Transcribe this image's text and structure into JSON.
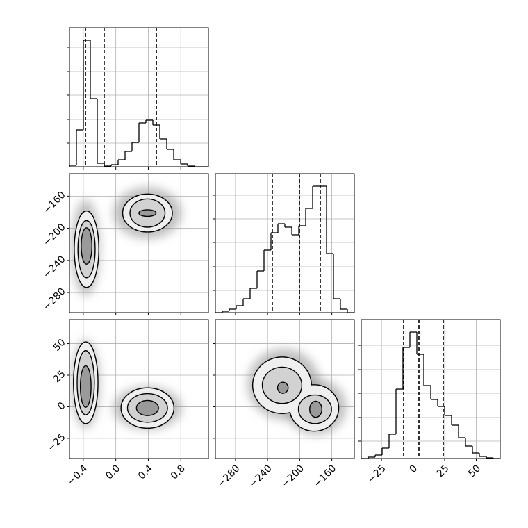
{
  "chart_data": {
    "type": "corner",
    "params": [
      {
        "lim": [
          -0.57,
          1.14
        ],
        "ticks": [
          {
            "value": -0.4,
            "label": "−0.4"
          },
          {
            "value": 0,
            "label": "0.0"
          },
          0.4,
          0.8
        ]
      },
      {
        "lim": [
          -305,
          -132
        ],
        "ticks": [
          {
            "value": -280,
            "label": "−280"
          },
          {
            "value": -240,
            "label": "−240"
          },
          {
            "value": -200,
            "label": "−200"
          },
          {
            "value": -160,
            "label": "−160"
          }
        ]
      },
      {
        "lim": [
          -41,
          69
        ],
        "ticks": [
          {
            "value": -25,
            "label": "−25"
          },
          0,
          25,
          50
        ]
      }
    ],
    "histograms": [
      {
        "bins": [
          -0.57,
          -0.4845,
          -0.399,
          -0.3135,
          -0.228,
          -0.1425,
          -0.057,
          0.0285,
          0.114,
          0.1995,
          0.285,
          0.3705,
          0.456,
          0.5415,
          0.627,
          0.7125,
          0.798,
          0.8835,
          0.969,
          1.0545,
          1.14
        ],
        "counts": [
          2,
          53,
          182,
          98,
          5,
          1,
          3,
          10,
          22,
          35,
          63,
          67,
          60,
          40,
          25,
          10,
          4,
          1,
          0,
          0
        ],
        "ylim": [
          0,
          200
        ],
        "yticks": [
          34,
          68,
          103,
          137,
          172
        ],
        "quantiles": [
          -0.373,
          -0.143,
          0.499
        ]
      },
      {
        "bins": [
          -305,
          -296.35,
          -287.7,
          -279.05,
          -270.4,
          -261.75,
          -253.1,
          -244.45,
          -235.8,
          -227.15,
          -218.5,
          -209.85,
          -201.2,
          -192.55,
          -183.9,
          -175.25,
          -166.6,
          -157.95,
          -149.3,
          -140.65,
          -132
        ],
        "counts": [
          0,
          2,
          5,
          10,
          20,
          35,
          60,
          90,
          115,
          128,
          123,
          112,
          125,
          150,
          182,
          182,
          85,
          20,
          5,
          0
        ],
        "ylim": [
          0,
          200
        ],
        "yticks": [
          32,
          66,
          101,
          135,
          169
        ],
        "quantiles": [
          -234.1,
          -200.3,
          -174.4
        ]
      },
      {
        "bins": [
          -41,
          -35.5,
          -30,
          -24.5,
          -19,
          -13.5,
          -8,
          -2.5,
          3,
          8.5,
          14,
          19.5,
          25,
          30.5,
          36,
          41.5,
          47,
          52.5,
          58,
          63.5,
          69
        ],
        "counts": [
          0,
          2,
          5,
          15,
          35,
          100,
          160,
          182,
          150,
          105,
          85,
          75,
          62,
          48,
          30,
          18,
          8,
          3,
          1,
          0
        ],
        "ylim": [
          0,
          200
        ],
        "yticks": [
          25,
          59,
          94,
          128,
          163
        ],
        "quantiles": [
          -7.45,
          4.65,
          23.9
        ]
      }
    ],
    "pairs": [
      {
        "clouds": [
          {
            "cx": -0.37,
            "cy": -224,
            "rx": 0.17,
            "ry": 60
          },
          {
            "cx": 0.39,
            "cy": -181,
            "rx": 0.42,
            "ry": 32
          }
        ],
        "contours": [
          [
            {
              "cx": -0.36,
              "cy": -226,
              "rx": 0.145,
              "ry": 47
            },
            {
              "cx": 0.39,
              "cy": -181,
              "rx": 0.3,
              "ry": 23
            }
          ],
          [
            {
              "cx": -0.36,
              "cy": -226,
              "rx": 0.1,
              "ry": 35
            },
            {
              "cx": 0.39,
              "cy": -181,
              "rx": 0.21,
              "ry": 17
            }
          ],
          [
            {
              "cx": -0.36,
              "cy": -222,
              "rx": 0.06,
              "ry": 22
            },
            {
              "cx": 0.39,
              "cy": -181,
              "rx": 0.1,
              "ry": 3.5
            }
          ]
        ]
      },
      {
        "clouds": [
          {
            "cx": -0.37,
            "cy": 18,
            "rx": 0.17,
            "ry": 35
          },
          {
            "cx": 0.39,
            "cy": -1,
            "rx": 0.42,
            "ry": 17
          }
        ],
        "contours": [
          [
            {
              "cx": -0.37,
              "cy": 19,
              "rx": 0.145,
              "ry": 32
            },
            {
              "cx": 0.39,
              "cy": -1,
              "rx": 0.32,
              "ry": 15.6
            }
          ],
          [
            {
              "cx": -0.37,
              "cy": 19,
              "rx": 0.1,
              "ry": 25
            },
            {
              "cx": 0.39,
              "cy": -1,
              "rx": 0.24,
              "ry": 11
            }
          ],
          [
            {
              "cx": -0.37,
              "cy": 16,
              "rx": 0.06,
              "ry": 16
            },
            {
              "cx": 0.39,
              "cy": -1,
              "rx": 0.13,
              "ry": 5.6
            }
          ]
        ]
      },
      {
        "clouds": [
          {
            "cx": -220,
            "cy": 18,
            "rx": 45,
            "ry": 28
          },
          {
            "cx": -180,
            "cy": 0,
            "rx": 38,
            "ry": 22
          }
        ],
        "contours": [
          [
            {
              "cx": -222,
              "cy": 17,
              "rx": 36,
              "ry": 22
            },
            {
              "cx": -182,
              "cy": -1,
              "rx": 30,
              "ry": 18
            }
          ],
          [
            {
              "cx": -222,
              "cy": 17,
              "rx": 24,
              "ry": 14
            },
            {
              "cx": -181,
              "cy": -2,
              "rx": 20,
              "ry": 11
            }
          ],
          [
            {
              "cx": -221,
              "cy": 15,
              "rx": 6,
              "ry": 4
            },
            {
              "cx": -180,
              "cy": -2,
              "rx": 7,
              "ry": 6
            }
          ]
        ]
      }
    ]
  }
}
